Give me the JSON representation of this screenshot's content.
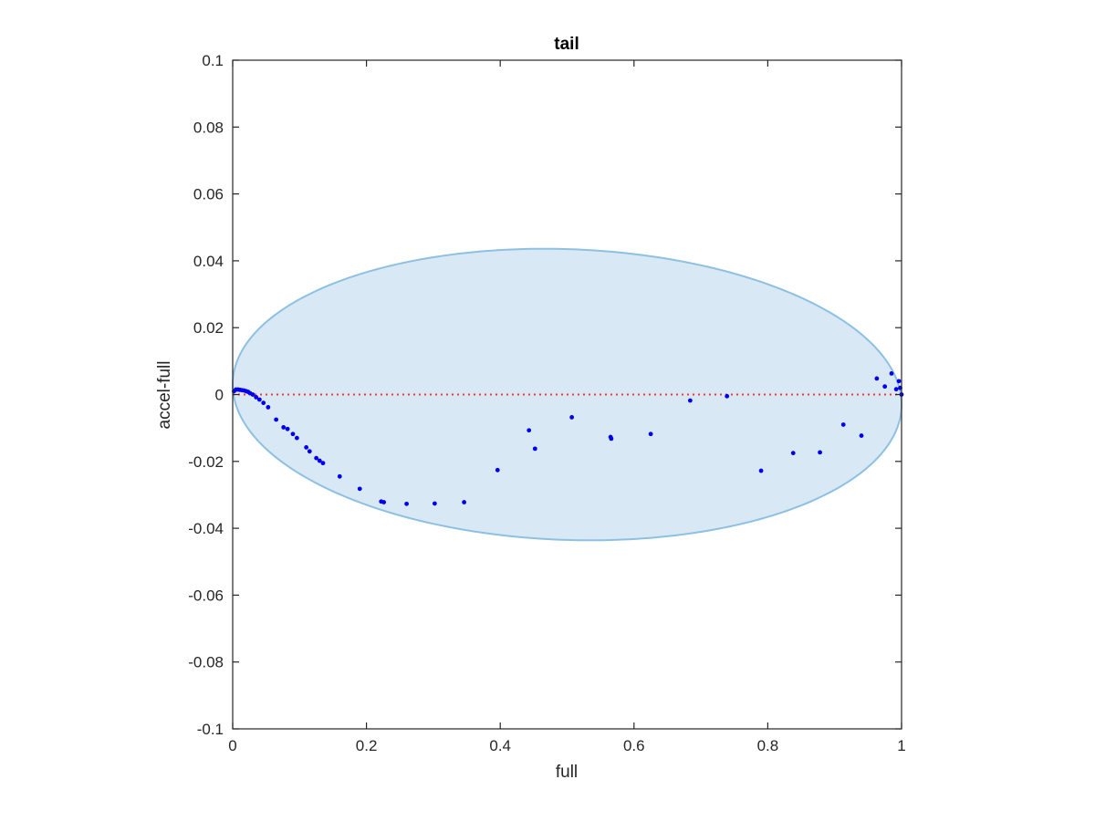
{
  "chart_data": {
    "type": "scatter",
    "title": "tail",
    "xlabel": "full",
    "ylabel": "accel-full",
    "xlim": [
      0,
      1
    ],
    "ylim": [
      -0.1,
      0.1
    ],
    "xticks": [
      0,
      0.2,
      0.4,
      0.6,
      0.8,
      1
    ],
    "xtick_labels": [
      "0",
      "0.2",
      "0.4",
      "0.6",
      "0.8",
      "1"
    ],
    "yticks": [
      -0.1,
      -0.08,
      -0.06,
      -0.04,
      -0.02,
      0,
      0.02,
      0.04,
      0.06,
      0.08,
      0.1
    ],
    "ytick_labels": [
      "-0.1",
      "-0.08",
      "-0.06",
      "-0.04",
      "-0.02",
      "0",
      "0.02",
      "0.04",
      "0.06",
      "0.08",
      "0.1"
    ],
    "grid": false,
    "reference_line": {
      "y": 0,
      "style": "dotted",
      "color": "#ff3333"
    },
    "ellipse": {
      "center_x": 0.5,
      "center_y": 0.0,
      "radius_x": 0.5,
      "radius_y": 0.0435,
      "tilt": 0.003,
      "fill": "#d9e8f5",
      "stroke": "#8ec0e2"
    },
    "series": [
      {
        "marker_color": "#0000ee",
        "points": [
          [
            0.002,
            0.001
          ],
          [
            0.005,
            0.0015
          ],
          [
            0.008,
            0.0015
          ],
          [
            0.011,
            0.0014
          ],
          [
            0.014,
            0.0013
          ],
          [
            0.017,
            0.0012
          ],
          [
            0.02,
            0.001
          ],
          [
            0.023,
            0.0008
          ],
          [
            0.026,
            0.0004
          ],
          [
            0.03,
            0.0
          ],
          [
            0.035,
            -0.0008
          ],
          [
            0.04,
            -0.0015
          ],
          [
            0.046,
            -0.0025
          ],
          [
            0.053,
            -0.0038
          ],
          [
            0.065,
            -0.0075
          ],
          [
            0.076,
            -0.0098
          ],
          [
            0.082,
            -0.0103
          ],
          [
            0.09,
            -0.0118
          ],
          [
            0.096,
            -0.013
          ],
          [
            0.11,
            -0.0158
          ],
          [
            0.115,
            -0.017
          ],
          [
            0.125,
            -0.019
          ],
          [
            0.13,
            -0.0198
          ],
          [
            0.135,
            -0.0205
          ],
          [
            0.16,
            -0.0245
          ],
          [
            0.19,
            -0.0282
          ],
          [
            0.222,
            -0.032
          ],
          [
            0.226,
            -0.0322
          ],
          [
            0.26,
            -0.0327
          ],
          [
            0.302,
            -0.0326
          ],
          [
            0.346,
            -0.0322
          ],
          [
            0.396,
            -0.0226
          ],
          [
            0.443,
            -0.0107
          ],
          [
            0.452,
            -0.0162
          ],
          [
            0.507,
            -0.0068
          ],
          [
            0.565,
            -0.0127
          ],
          [
            0.566,
            -0.0132
          ],
          [
            0.625,
            -0.0118
          ],
          [
            0.684,
            -0.0018
          ],
          [
            0.739,
            -0.0005
          ],
          [
            0.79,
            -0.0228
          ],
          [
            0.838,
            -0.0175
          ],
          [
            0.878,
            -0.0173
          ],
          [
            0.913,
            -0.009
          ],
          [
            0.94,
            -0.0123
          ],
          [
            0.963,
            0.0048
          ],
          [
            0.975,
            0.0024
          ],
          [
            0.985,
            0.0063
          ],
          [
            0.992,
            0.0016
          ],
          [
            0.996,
            0.004
          ],
          [
            0.998,
            0.002
          ],
          [
            1.0,
            0.0
          ]
        ]
      }
    ]
  }
}
